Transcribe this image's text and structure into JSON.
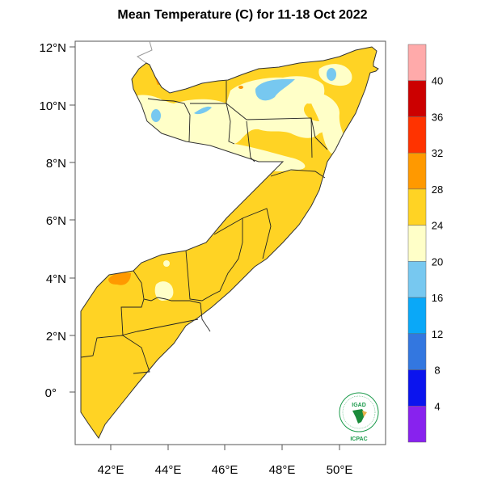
{
  "title": "Mean Temperature (C) for 11-18 Oct 2022",
  "map": {
    "region": "Somalia",
    "lon_ticks": [
      "42°E",
      "44°E",
      "46°E",
      "48°E",
      "50°E"
    ],
    "lat_ticks": [
      "12°N",
      "10°N",
      "8°N",
      "6°N",
      "4°N",
      "2°N",
      "0°"
    ],
    "dominant_class": "24-28",
    "colors": {
      "light_yellow": "#ffffc8",
      "yellow": "#ffd324",
      "orange": "#ff9900",
      "light_blue": "#77c8f0",
      "border": "#222222"
    }
  },
  "colorbar": {
    "labels": [
      "40",
      "36",
      "32",
      "28",
      "24",
      "20",
      "16",
      "12",
      "8",
      "4"
    ],
    "colors": [
      "#ffaaaa",
      "#cc0000",
      "#ff3300",
      "#ff9900",
      "#ffd324",
      "#ffffc8",
      "#77c8f0",
      "#0aa8f8",
      "#3377e0",
      "#0b14ee",
      "#8822ee"
    ]
  },
  "logo": {
    "top_text": "IGAD",
    "bottom_text": "ICPAC"
  }
}
